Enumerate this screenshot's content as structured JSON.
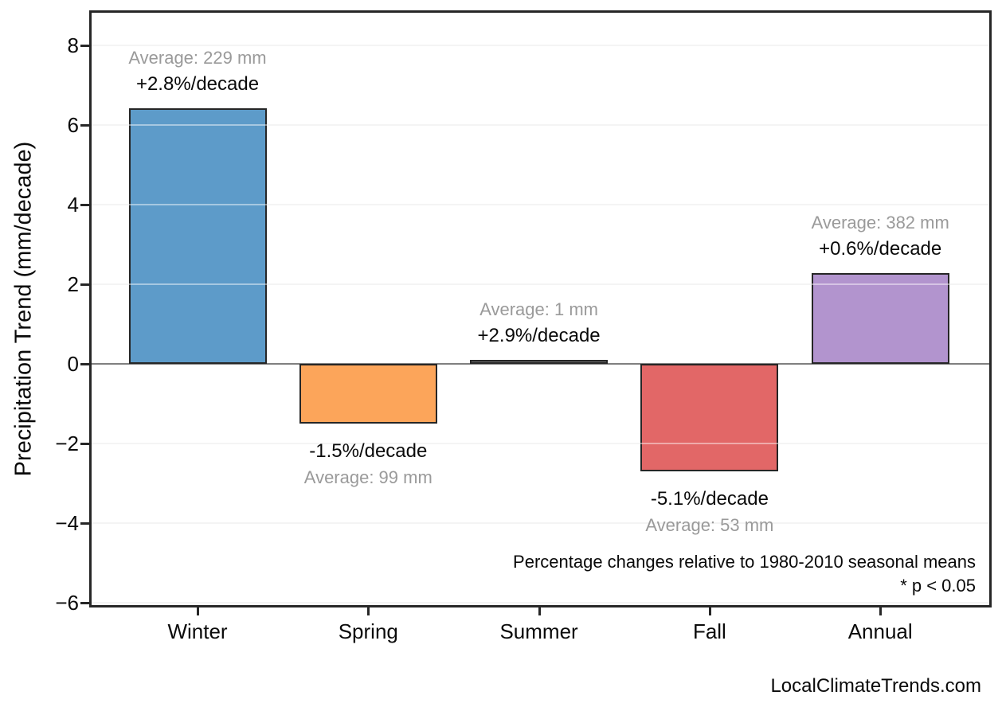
{
  "page": {
    "watermark": "LocalClimateTrends.com"
  },
  "chart_data": {
    "type": "bar",
    "title": "",
    "xlabel": "",
    "ylabel": "Precipitation Trend (mm/decade)",
    "categories": [
      "Winter",
      "Spring",
      "Summer",
      "Fall",
      "Annual"
    ],
    "values": [
      6.41,
      -1.49,
      0.05,
      -2.7,
      2.28
    ],
    "series": [
      {
        "name": "Precipitation trend (mm/decade)",
        "values": [
          6.41,
          -1.49,
          0.05,
          -2.7,
          2.28
        ]
      }
    ],
    "averages_mm": [
      229,
      99,
      1,
      53,
      382
    ],
    "pct_per_decade": [
      "+2.8%/decade",
      "-1.5%/decade",
      "+2.9%/decade",
      "-5.1%/decade",
      "+0.6%/decade"
    ],
    "bar_labels": [
      {
        "avg": "Average: 229 mm",
        "pct": "+2.8%/decade"
      },
      {
        "avg": "Average: 99 mm",
        "pct": "-1.5%/decade"
      },
      {
        "avg": "Average: 1 mm",
        "pct": "+2.9%/decade"
      },
      {
        "avg": "Average: 53 mm",
        "pct": "-5.1%/decade"
      },
      {
        "avg": "Average: 382 mm",
        "pct": "+0.6%/decade"
      }
    ],
    "bar_colors": [
      "#5d9bc9",
      "#fca55a",
      "#6b6b6b",
      "#e26767",
      "#b294ce"
    ],
    "bar_edge_color": "#262626",
    "y_ticks": [
      8,
      6,
      4,
      2,
      0,
      -2,
      -4,
      -6
    ],
    "ylim": [
      -6.12,
      8.88
    ],
    "grid": true,
    "legend": "none",
    "zero_line_color": "#808080",
    "text_colors": {
      "pct": "#0a0a0a",
      "avg": "#9a9a9a"
    },
    "annotations": [
      "Percentage changes relative to 1980-2010 seasonal means",
      "* p < 0.05"
    ]
  }
}
